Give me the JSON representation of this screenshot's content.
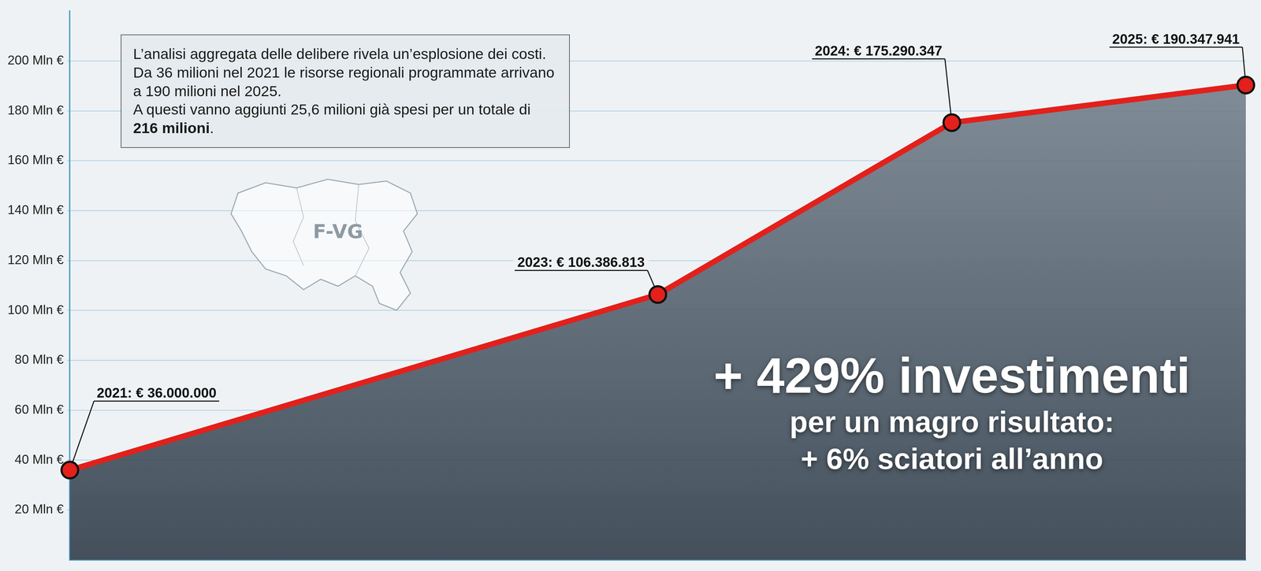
{
  "chart_data": {
    "type": "line",
    "x": [
      2021,
      2023,
      2024,
      2025
    ],
    "values": [
      36,
      106.386813,
      175.290347,
      190.347941
    ],
    "value_labels": [
      "2021: € 36.000.000",
      "2023: € 106.386.813",
      "2024: € 175.290.347",
      "2025: € 190.347.941"
    ],
    "data_labels": true,
    "color": "#e3201b",
    "marker": "circle",
    "line_style": "solid",
    "xlim": [
      2021,
      2025
    ],
    "ylim": [
      0,
      220
    ],
    "yticks": [
      {
        "value": 20,
        "label": "20 Mln €"
      },
      {
        "value": 40,
        "label": "40 Mln €"
      },
      {
        "value": 60,
        "label": "60 Mln €"
      },
      {
        "value": 80,
        "label": "80 Mln €"
      },
      {
        "value": 100,
        "label": "100 Mln €"
      },
      {
        "value": 120,
        "label": "120 Mln €"
      },
      {
        "value": 140,
        "label": "140 Mln €"
      },
      {
        "value": 160,
        "label": "160 Mln €"
      },
      {
        "value": 180,
        "label": "180 Mln €"
      },
      {
        "value": 200,
        "label": "200 Mln €"
      }
    ],
    "grid": true,
    "tick_labels": "y",
    "note": {
      "paragraphs": [
        "L’analisi aggregata delle delibere rivela un’esplosione dei costi. Da 36 milioni nel 2021 le risorse regionali programmate arrivano a 190 milioni nel 2025.",
        "A questi vanno aggiunti 25,6 milioni già spesi per un totale di 216 milioni."
      ],
      "bold": "216 milioni"
    },
    "map_label": "F-VG",
    "headline": [
      "+ 429% investimenti",
      "per un magro risultato:",
      "+ 6% sciatori all’anno"
    ]
  }
}
